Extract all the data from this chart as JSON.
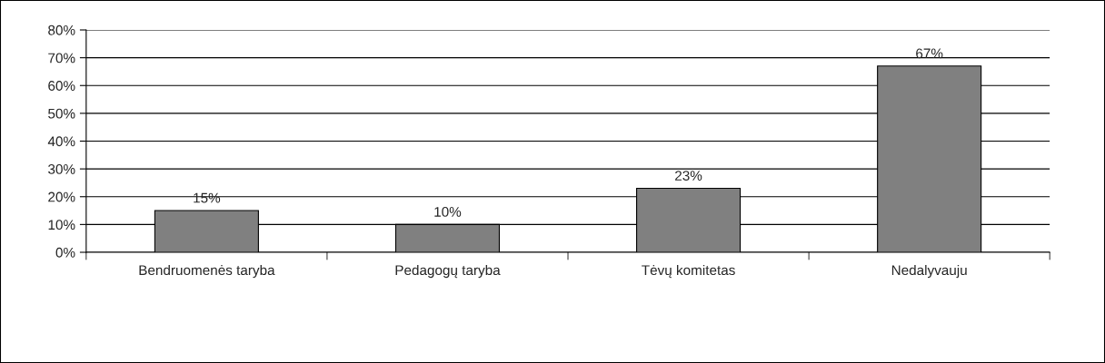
{
  "chart_data": {
    "type": "bar",
    "categories": [
      "Bendruomenės taryba",
      "Pedagogų taryba",
      "Tėvų komitetas",
      "Nedalyvauju"
    ],
    "values": [
      15,
      10,
      23,
      67
    ],
    "value_labels": [
      "15%",
      "10%",
      "23%",
      "67%"
    ],
    "color": "#808080",
    "ylim": [
      0,
      80
    ],
    "yticks": [
      {
        "value": 0,
        "label": "0%"
      },
      {
        "value": 10,
        "label": "10%"
      },
      {
        "value": 20,
        "label": "20%"
      },
      {
        "value": 30,
        "label": "30%"
      },
      {
        "value": 40,
        "label": "40%"
      },
      {
        "value": 50,
        "label": "50%"
      },
      {
        "value": 60,
        "label": "60%"
      },
      {
        "value": 70,
        "label": "70%"
      },
      {
        "value": 80,
        "label": "80%"
      }
    ],
    "grid": "y"
  }
}
